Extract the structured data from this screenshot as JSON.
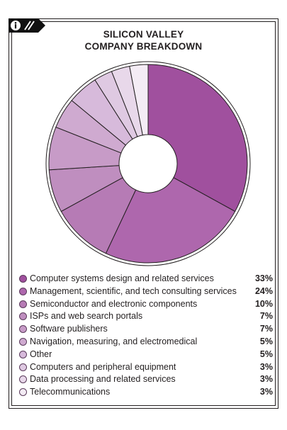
{
  "title": {
    "line1": "SILICON VALLEY",
    "line2": "COMPANY BREAKDOWN"
  },
  "badge": {
    "icon": "info-icon",
    "color": "#111111"
  },
  "chart_data": {
    "type": "pie",
    "style": "donut",
    "title": "SILICON VALLEY COMPANY BREAKDOWN",
    "legend": "bottom",
    "series": [
      {
        "label": "Computer systems design and related services",
        "value": 33,
        "display": "33%",
        "color": "#a0509e"
      },
      {
        "label": "Management, scientific, and tech consulting services",
        "value": 24,
        "display": "24%",
        "color": "#ae67ad"
      },
      {
        "label": "Semiconductor and electronic components",
        "value": 10,
        "display": "10%",
        "color": "#b67bb5"
      },
      {
        "label": "ISPs and web search portals",
        "value": 7,
        "display": "7%",
        "color": "#bf8ebf"
      },
      {
        "label": "Software publishers",
        "value": 7,
        "display": "7%",
        "color": "#c79bc7"
      },
      {
        "label": "Navigation, measuring, and electromedical",
        "value": 5,
        "display": "5%",
        "color": "#cfaad0"
      },
      {
        "label": "Other",
        "value": 5,
        "display": "5%",
        "color": "#d7badb"
      },
      {
        "label": "Computers and peripheral equipment",
        "value": 3,
        "display": "3%",
        "color": "#dfc9e2"
      },
      {
        "label": "Data processing and related services",
        "value": 3,
        "display": "3%",
        "color": "#e8d8ea"
      },
      {
        "label": "Telecommunications",
        "value": 3,
        "display": "3%",
        "color": "#f4ecf5"
      }
    ]
  }
}
